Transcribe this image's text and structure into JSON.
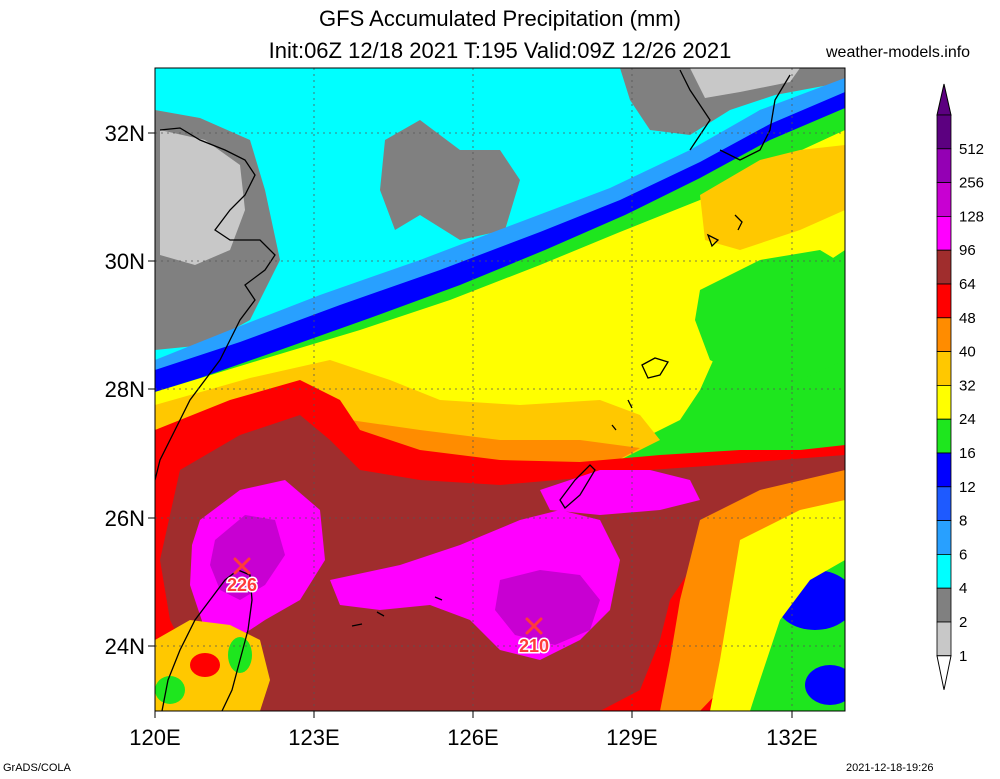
{
  "header": {
    "title": "GFS Accumulated Precipitation (mm)",
    "subtitle": "Init:06Z 12/18 2021 T:195 Valid:09Z 12/26 2021",
    "site": "weather-models.info"
  },
  "footer": {
    "left": "GrADS/COLA",
    "right": "2021-12-18-19:26"
  },
  "axes": {
    "lat_labels": [
      "32N",
      "30N",
      "28N",
      "26N",
      "24N"
    ],
    "lon_labels": [
      "120E",
      "123E",
      "126E",
      "129E",
      "132E"
    ]
  },
  "legend": {
    "levels": [
      {
        "label": "512",
        "color": "#5c0080"
      },
      {
        "label": "256",
        "color": "#9400b4"
      },
      {
        "label": "128",
        "color": "#c800d2"
      },
      {
        "label": "96",
        "color": "#ff00ff"
      },
      {
        "label": "64",
        "color": "#a02d2d"
      },
      {
        "label": "48",
        "color": "#ff0000"
      },
      {
        "label": "40",
        "color": "#ff8c00"
      },
      {
        "label": "32",
        "color": "#ffc800"
      },
      {
        "label": "24",
        "color": "#ffff00"
      },
      {
        "label": "16",
        "color": "#1ee61e"
      },
      {
        "label": "12",
        "color": "#0000ff"
      },
      {
        "label": "8",
        "color": "#1e5aff"
      },
      {
        "label": "6",
        "color": "#28a0ff"
      },
      {
        "label": "4",
        "color": "#00ffff"
      },
      {
        "label": "2",
        "color": "#808080"
      },
      {
        "label": "1",
        "color": "#c8c8c8"
      }
    ]
  },
  "markers": [
    {
      "label": "226"
    },
    {
      "label": "210"
    }
  ]
}
